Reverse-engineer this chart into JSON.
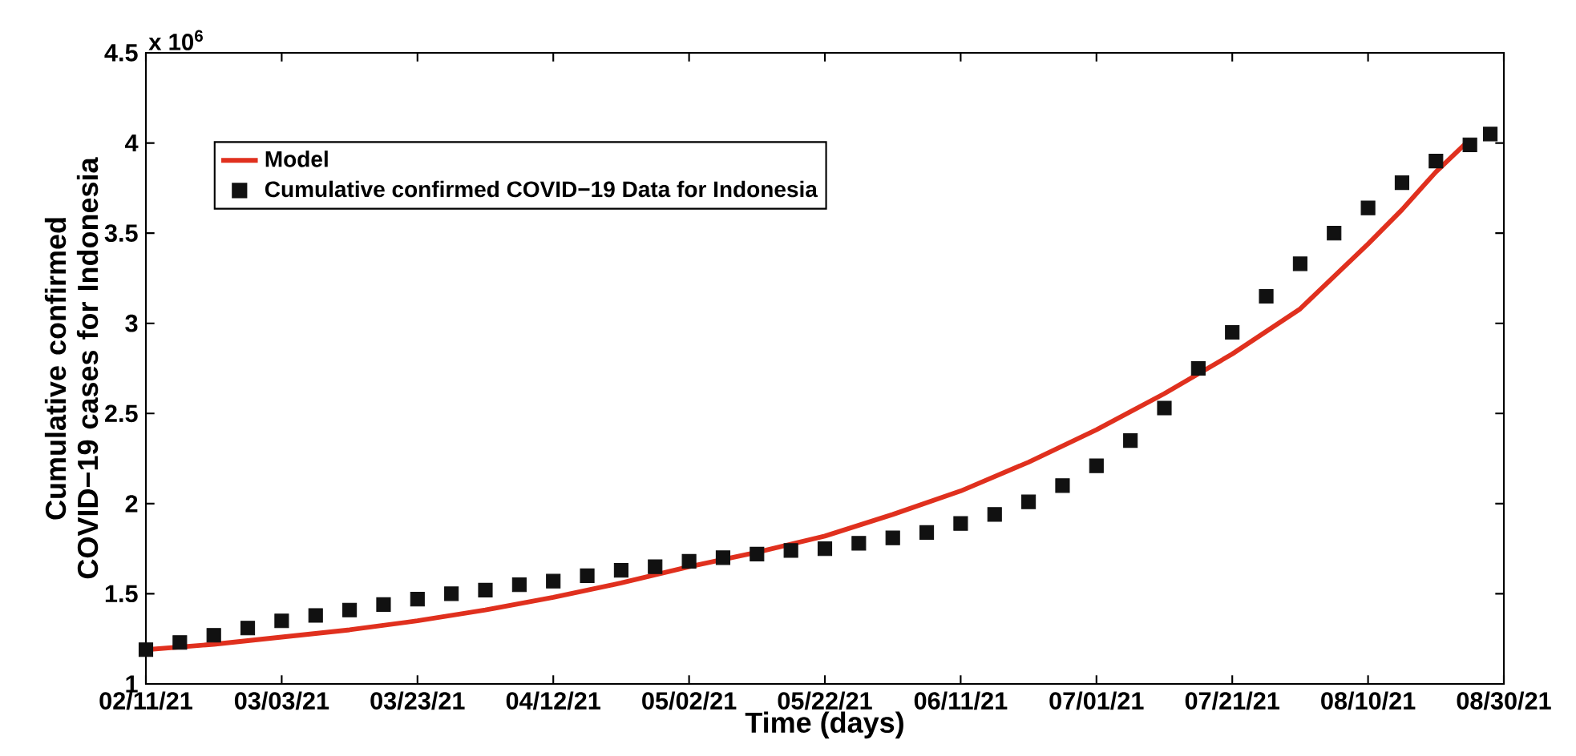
{
  "chart_data": {
    "type": "line",
    "xlabel": "Time (days)",
    "ylabel": "Cumulative confirmed COVID−19 cases for Indonesia",
    "annotations": [
      "x 10$^{6}$"
    ],
    "xlim": [
      "2021-02-11",
      "2021-08-30"
    ],
    "xticks": [
      {
        "value": "2021-02-11",
        "label": "02/11/21"
      },
      {
        "value": "2021-03-03",
        "label": "03/03/21"
      },
      {
        "value": "2021-03-23",
        "label": "03/23/21"
      },
      {
        "value": "2021-04-12",
        "label": "04/12/21"
      },
      {
        "value": "2021-05-02",
        "label": "05/02/21"
      },
      {
        "value": "2021-05-22",
        "label": "05/22/21"
      },
      {
        "value": "2021-06-11",
        "label": "06/11/21"
      },
      {
        "value": "2021-07-01",
        "label": "07/01/21"
      },
      {
        "value": "2021-07-21",
        "label": "07/21/21"
      },
      {
        "value": "2021-08-10",
        "label": "08/10/21"
      },
      {
        "value": "2021-08-30",
        "label": "08/30/21"
      }
    ],
    "ylim": [
      1,
      4.5
    ],
    "yticks": [
      1,
      1.5,
      2,
      2.5,
      3,
      3.5,
      4,
      4.5
    ],
    "legend": "top left",
    "series": [
      {
        "name": "Model",
        "color": "#e0301e",
        "line_style": "solid",
        "x": [
          "2021-02-11",
          "2021-02-21",
          "2021-03-03",
          "2021-03-13",
          "2021-03-23",
          "2021-04-02",
          "2021-04-12",
          "2021-04-22",
          "2021-05-02",
          "2021-05-12",
          "2021-05-22",
          "2021-06-01",
          "2021-06-11",
          "2021-06-21",
          "2021-07-01",
          "2021-07-11",
          "2021-07-21",
          "2021-07-31",
          "2021-08-10",
          "2021-08-15",
          "2021-08-20",
          "2021-08-25"
        ],
        "values": [
          1.19,
          1.22,
          1.26,
          1.3,
          1.35,
          1.41,
          1.48,
          1.56,
          1.65,
          1.73,
          1.82,
          1.94,
          2.07,
          2.23,
          2.41,
          2.61,
          2.83,
          3.08,
          3.44,
          3.63,
          3.84,
          4.02
        ]
      },
      {
        "name": "Cumulative confirmed COVID−19 Data for Indonesia",
        "type": "scatter",
        "color": "#111111",
        "marker": "square",
        "x": [
          "2021-02-11",
          "2021-02-16",
          "2021-02-21",
          "2021-02-26",
          "2021-03-03",
          "2021-03-08",
          "2021-03-13",
          "2021-03-18",
          "2021-03-23",
          "2021-03-28",
          "2021-04-02",
          "2021-04-07",
          "2021-04-12",
          "2021-04-17",
          "2021-04-22",
          "2021-04-27",
          "2021-05-02",
          "2021-05-07",
          "2021-05-12",
          "2021-05-17",
          "2021-05-22",
          "2021-05-27",
          "2021-06-01",
          "2021-06-06",
          "2021-06-11",
          "2021-06-16",
          "2021-06-21",
          "2021-06-26",
          "2021-07-01",
          "2021-07-06",
          "2021-07-11",
          "2021-07-16",
          "2021-07-21",
          "2021-07-26",
          "2021-07-31",
          "2021-08-05",
          "2021-08-10",
          "2021-08-15",
          "2021-08-20",
          "2021-08-25",
          "2021-08-28"
        ],
        "values": [
          1.19,
          1.23,
          1.27,
          1.31,
          1.35,
          1.38,
          1.41,
          1.44,
          1.47,
          1.5,
          1.52,
          1.55,
          1.57,
          1.6,
          1.63,
          1.65,
          1.68,
          1.7,
          1.72,
          1.74,
          1.75,
          1.78,
          1.81,
          1.84,
          1.89,
          1.94,
          2.01,
          2.1,
          2.21,
          2.35,
          2.53,
          2.75,
          2.95,
          3.15,
          3.33,
          3.5,
          3.64,
          3.78,
          3.9,
          3.99,
          4.05
        ]
      }
    ]
  }
}
